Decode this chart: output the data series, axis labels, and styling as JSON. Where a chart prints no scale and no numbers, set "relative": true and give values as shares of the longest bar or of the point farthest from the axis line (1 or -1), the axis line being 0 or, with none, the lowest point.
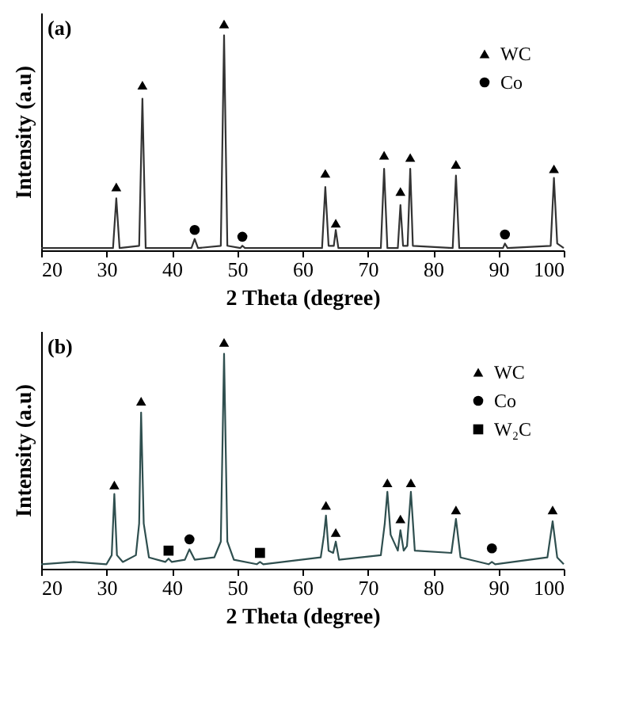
{
  "chart_data": [
    {
      "type": "line",
      "relative": true,
      "annotations": [
        "(a)"
      ],
      "xlabel": "2 Theta (degree)",
      "ylabel": "Intensity (a.u)",
      "xlim": [
        20,
        100
      ],
      "xticks": [
        20,
        30,
        40,
        50,
        60,
        70,
        80,
        90,
        100
      ],
      "legend": "top right",
      "line_style": "solid",
      "series": [
        {
          "color": "#333333",
          "x": [
            20,
            31,
            31.5,
            32,
            35,
            35.5,
            36,
            43,
            43.5,
            44,
            47.5,
            48,
            48.5,
            50.5,
            50.8,
            51.2,
            63,
            63.5,
            64,
            64.8,
            65.1,
            65.5,
            72,
            72.5,
            73,
            74.6,
            75,
            75.4,
            76.1,
            76.5,
            76.9,
            83,
            83.5,
            84,
            90.7,
            91,
            91.4,
            98,
            98.5,
            99,
            100
          ],
          "values": [
            0.01,
            0.01,
            0.23,
            0.01,
            0.02,
            0.67,
            0.01,
            0.01,
            0.05,
            0.01,
            0.02,
            0.95,
            0.02,
            0.01,
            0.02,
            0.01,
            0.01,
            0.28,
            0.02,
            0.02,
            0.09,
            0.01,
            0.01,
            0.36,
            0.01,
            0.01,
            0.2,
            0.02,
            0.02,
            0.36,
            0.02,
            0.01,
            0.33,
            0.01,
            0.01,
            0.03,
            0.01,
            0.02,
            0.32,
            0.03,
            0.01
          ]
        },
        {
          "type": "scatter",
          "name": "WC",
          "marker": "triangle",
          "color": "#000000",
          "x": [
            31.5,
            35.5,
            48,
            63.5,
            65.1,
            72.5,
            75,
            76.5,
            83.5,
            98.5
          ],
          "values": [
            0.28,
            0.73,
            1,
            0.34,
            0.12,
            0.42,
            0.26,
            0.41,
            0.38,
            0.36
          ]
        },
        {
          "type": "scatter",
          "name": "Co",
          "marker": "circle",
          "color": "#000000",
          "x": [
            43.5,
            50.8,
            91
          ],
          "values": [
            0.09,
            0.06,
            0.07
          ]
        }
      ]
    },
    {
      "type": "line",
      "relative": true,
      "annotations": [
        "(b)"
      ],
      "xlabel": "2 Theta (degree)",
      "ylabel": "Intensity (a.u)",
      "xlim": [
        20,
        100
      ],
      "xticks": [
        20,
        30,
        40,
        50,
        60,
        70,
        80,
        90,
        100
      ],
      "legend": "top right",
      "line_style": "solid",
      "series": [
        {
          "color": "#2f4f4f",
          "x": [
            20,
            25,
            30,
            30.8,
            31.2,
            31.6,
            32.5,
            34.5,
            35,
            35.3,
            35.7,
            36.5,
            39,
            39.5,
            40,
            42,
            42.7,
            43.5,
            46.5,
            47.5,
            48,
            48.5,
            49.5,
            53,
            53.5,
            54,
            62.8,
            63.3,
            63.6,
            64,
            64.7,
            65.1,
            65.6,
            72,
            72.6,
            73,
            73.5,
            74.6,
            75,
            75.5,
            76,
            76.6,
            77.2,
            82.8,
            83.5,
            84.2,
            88.5,
            89,
            89.5,
            97.5,
            98.3,
            99,
            100
          ],
          "values": [
            0.02,
            0.03,
            0.02,
            0.06,
            0.33,
            0.06,
            0.03,
            0.06,
            0.2,
            0.69,
            0.2,
            0.05,
            0.03,
            0.045,
            0.03,
            0.04,
            0.086,
            0.04,
            0.05,
            0.12,
            0.95,
            0.12,
            0.04,
            0.02,
            0.03,
            0.02,
            0.05,
            0.15,
            0.235,
            0.08,
            0.07,
            0.12,
            0.04,
            0.06,
            0.2,
            0.34,
            0.15,
            0.08,
            0.17,
            0.08,
            0.1,
            0.34,
            0.08,
            0.07,
            0.22,
            0.05,
            0.02,
            0.03,
            0.02,
            0.05,
            0.21,
            0.05,
            0.02
          ]
        },
        {
          "type": "scatter",
          "name": "WC",
          "marker": "triangle",
          "color": "#000000",
          "x": [
            31.2,
            35.3,
            48,
            63.6,
            65.1,
            73,
            75,
            76.6,
            83.5,
            98.3
          ],
          "values": [
            0.37,
            0.74,
            1,
            0.28,
            0.16,
            0.38,
            0.22,
            0.38,
            0.26,
            0.26
          ]
        },
        {
          "type": "scatter",
          "name": "Co",
          "marker": "circle",
          "color": "#000000",
          "x": [
            42.7,
            89
          ],
          "values": [
            0.13,
            0.09
          ]
        },
        {
          "type": "scatter",
          "name": "W₂C",
          "marker": "square",
          "color": "#000000",
          "x": [
            39.5,
            53.5
          ],
          "values": [
            0.08,
            0.07
          ]
        }
      ]
    }
  ]
}
